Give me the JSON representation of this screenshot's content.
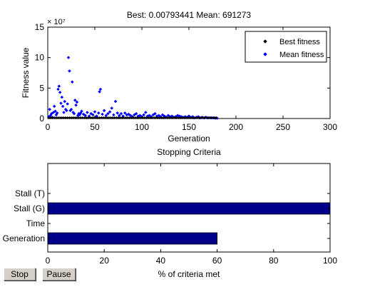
{
  "buttons": {
    "stop_label": "Stop",
    "pause_label": "Pause"
  },
  "chart_data": [
    {
      "type": "scatter",
      "title": "Best: 0.00793441 Mean: 691273",
      "xlabel": "Generation",
      "ylabel": "Fitness value",
      "y_exponent_label": "× 10⁷",
      "xlim": [
        0,
        300
      ],
      "ylim": [
        0,
        15
      ],
      "x_ticks": [
        0,
        50,
        100,
        150,
        200,
        250,
        300
      ],
      "y_ticks": [
        0,
        5,
        10,
        15
      ],
      "grid": false,
      "legend_position": "top-right",
      "colors": {
        "best": "#000000",
        "mean": "#0000ff"
      },
      "series": [
        {
          "name": "Best fitness",
          "x": [
            1,
            3,
            5,
            7,
            9,
            11,
            13,
            15,
            17,
            19,
            21,
            23,
            25,
            27,
            29,
            31,
            33,
            35,
            37,
            39,
            41,
            43,
            45,
            47,
            49,
            51,
            53,
            55,
            57,
            59,
            61,
            63,
            65,
            67,
            69,
            71,
            73,
            75,
            77,
            79,
            81,
            83,
            85,
            87,
            89,
            91,
            93,
            95,
            97,
            99,
            101,
            103,
            105,
            107,
            109,
            111,
            113,
            115,
            117,
            119,
            121,
            123,
            125,
            127,
            129,
            131,
            133,
            135,
            137,
            139,
            141,
            143,
            145,
            147,
            149,
            151,
            153,
            155,
            157,
            159,
            161,
            163,
            165,
            167,
            169,
            171,
            173,
            175,
            177,
            179
          ],
          "y": [
            0,
            0,
            0,
            0,
            0,
            0,
            0,
            0,
            0,
            0,
            0,
            0,
            0,
            0,
            0,
            0,
            0,
            0,
            0,
            0,
            0,
            0,
            0,
            0,
            0,
            0,
            0,
            0,
            0,
            0,
            0,
            0,
            0,
            0,
            0,
            0,
            0,
            0,
            0,
            0,
            0,
            0,
            0,
            0,
            0,
            0,
            0,
            0,
            0,
            0,
            0,
            0,
            0,
            0,
            0,
            0,
            0,
            0,
            0,
            0,
            0,
            0,
            0,
            0,
            0,
            0,
            0,
            0,
            0,
            0,
            0,
            0,
            0,
            0,
            0,
            0,
            0,
            0,
            0,
            0,
            0,
            0,
            0,
            0,
            0,
            0,
            0,
            0,
            0,
            0
          ]
        },
        {
          "name": "Mean fitness",
          "x": [
            1,
            2,
            3,
            4,
            5,
            6,
            7,
            8,
            9,
            10,
            11,
            12,
            13,
            14,
            15,
            16,
            17,
            18,
            19,
            20,
            21,
            22,
            23,
            24,
            25,
            26,
            27,
            28,
            29,
            30,
            31,
            32,
            33,
            34,
            35,
            36,
            38,
            40,
            42,
            44,
            46,
            48,
            50,
            52,
            54,
            55,
            56,
            58,
            60,
            62,
            64,
            66,
            68,
            70,
            72,
            74,
            76,
            78,
            80,
            82,
            84,
            86,
            88,
            90,
            92,
            94,
            96,
            98,
            100,
            102,
            104,
            106,
            108,
            110,
            112,
            114,
            116,
            118,
            120,
            122,
            124,
            126,
            128,
            130,
            132,
            134,
            136,
            138,
            140,
            142,
            144,
            146,
            148,
            150,
            152,
            154,
            156,
            158,
            160,
            162,
            164,
            166,
            168,
            170,
            172,
            174,
            176,
            178,
            180
          ],
          "y": [
            0.3,
            1.5,
            0.5,
            0.8,
            0.2,
            1.0,
            2.0,
            1.2,
            0.6,
            0.9,
            4.8,
            5.3,
            4.3,
            2.5,
            3.5,
            2.0,
            1.0,
            2.8,
            1.5,
            1.3,
            2.4,
            10.0,
            7.8,
            1.3,
            1.5,
            6.0,
            1.0,
            0.8,
            3.0,
            2.2,
            2.7,
            0.5,
            0.8,
            0.6,
            0.9,
            1.2,
            0.7,
            0.5,
            1.0,
            0.4,
            0.8,
            0.6,
            1.1,
            0.4,
            0.9,
            4.4,
            4.8,
            0.7,
            1.3,
            0.5,
            0.8,
            1.1,
            1.7,
            0.6,
            2.8,
            0.9,
            0.5,
            0.8,
            0.4,
            0.9,
            0.6,
            0.7,
            0.5,
            0.3,
            0.6,
            0.8,
            0.4,
            0.5,
            0.3,
            0.6,
            1.0,
            0.4,
            0.5,
            0.3,
            0.6,
            0.8,
            0.4,
            0.5,
            0.3,
            0.6,
            0.4,
            0.2,
            0.5,
            0.3,
            0.4,
            0.2,
            0.3,
            0.5,
            0.4,
            0.3,
            0.2,
            0.3,
            0.2,
            0.4,
            0.2,
            0.3,
            0.1,
            0.2,
            0.3,
            0.1,
            0.2,
            0.1,
            0.2,
            0.1,
            0.1,
            0.1,
            0.1,
            0.05,
            0.05
          ]
        }
      ]
    },
    {
      "type": "bar",
      "orientation": "horizontal",
      "title": "Stopping Criteria",
      "xlabel": "% of criteria met",
      "ylabel": "",
      "xlim": [
        0,
        100
      ],
      "x_ticks": [
        0,
        20,
        40,
        60,
        80,
        100
      ],
      "categories": [
        "Stall (T)",
        "Stall (G)",
        "Time",
        "Generation"
      ],
      "values": [
        0,
        100,
        0,
        60
      ],
      "bar_color": "#00008b",
      "grid": false
    }
  ]
}
